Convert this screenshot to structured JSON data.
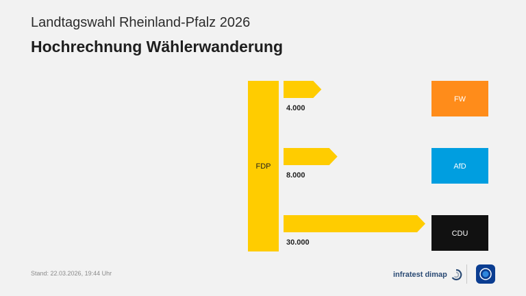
{
  "header": {
    "subtitle": "Landtagswahl Rheinland-Pfalz 2026",
    "title": "Hochrechnung Wählerwanderung"
  },
  "footer": {
    "stand": "Stand:  22.03.2026, 19:44 Uhr",
    "brand": "infratest dimap",
    "brand_icon": "infratest-dimap-logo",
    "broadcaster_icon": "ard-tagesschau-logo"
  },
  "colors": {
    "background": "#f2f2f2",
    "source_bar": "#ffcc00",
    "arrow": "#ffcc00",
    "FW": "#ff8c1a",
    "AfD": "#009ee0",
    "CDU": "#111111"
  },
  "chart_data": {
    "type": "bar",
    "source": "FDP",
    "flows": [
      {
        "target": "FW",
        "value": 4000,
        "label": "4.000",
        "color": "#ff8c1a"
      },
      {
        "target": "AfD",
        "value": 8000,
        "label": "8.000",
        "color": "#009ee0"
      },
      {
        "target": "CDU",
        "value": 30000,
        "label": "30.000",
        "color": "#111111"
      }
    ]
  }
}
